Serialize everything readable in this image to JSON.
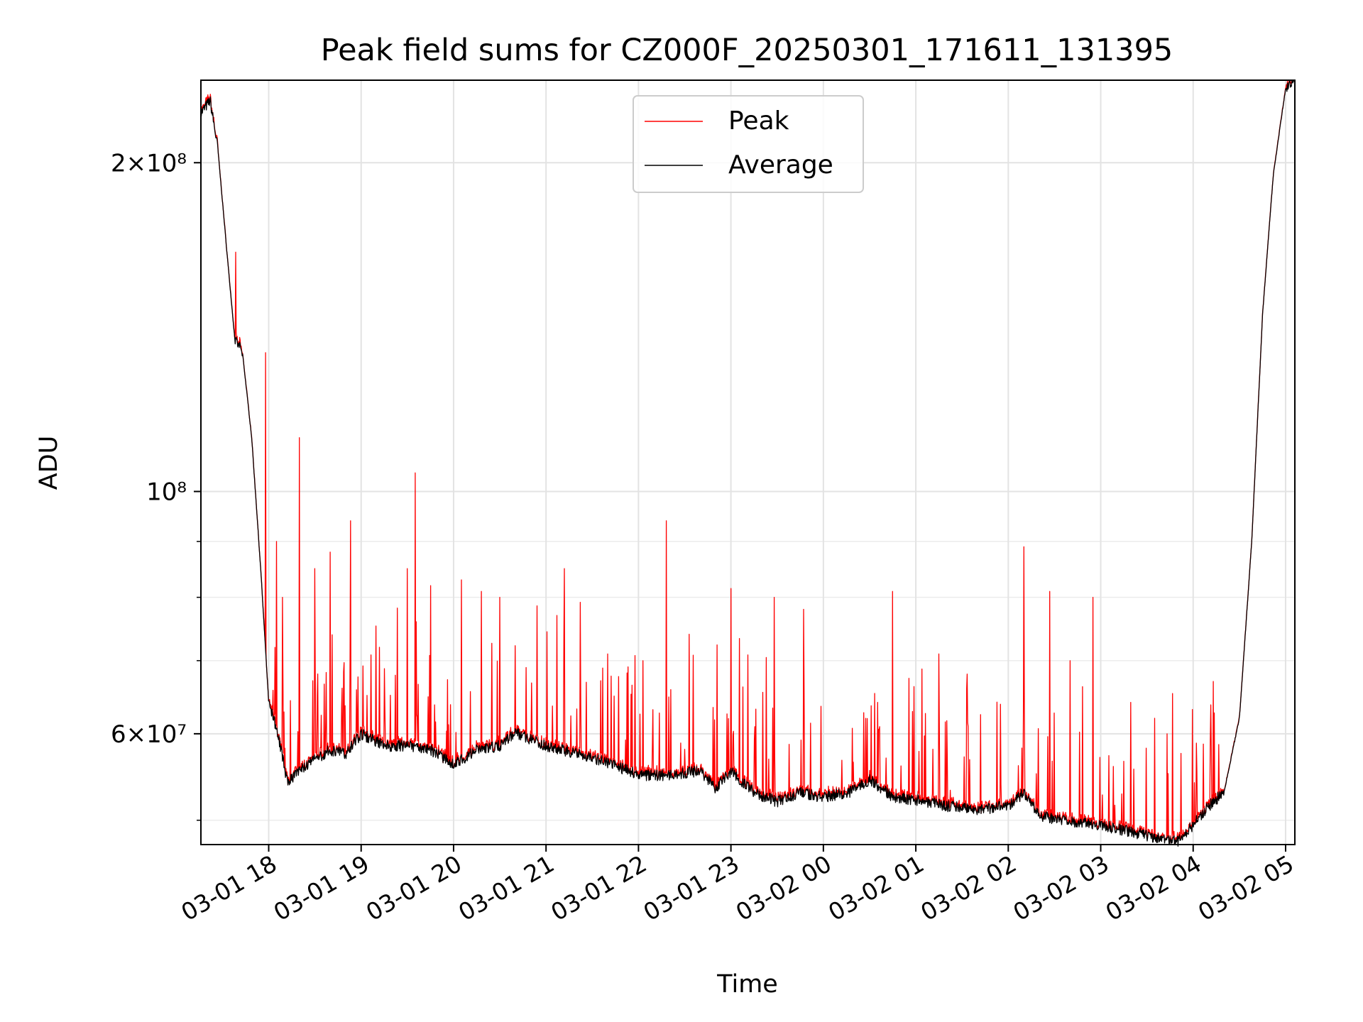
{
  "chart_data": {
    "type": "line",
    "title": "Peak field sums for CZ000F_20250301_171611_131395",
    "xlabel": "Time",
    "ylabel": "ADU",
    "x_axis": "date",
    "x_range": [
      "2025-03-01 17:16",
      "2025-03-02 05:06"
    ],
    "y_scale": "log",
    "ylim": [
      47500000.0,
      238000000.0
    ],
    "grid": true,
    "legend_position": "upper-center",
    "x_ticks": [
      "03-01 18",
      "03-01 19",
      "03-01 20",
      "03-01 21",
      "03-01 22",
      "03-01 23",
      "03-02 00",
      "03-02 01",
      "03-02 02",
      "03-02 03",
      "03-02 04",
      "03-02 05"
    ],
    "x_tick_times": [
      "2025-03-01 18:00",
      "2025-03-01 19:00",
      "2025-03-01 20:00",
      "2025-03-01 21:00",
      "2025-03-01 22:00",
      "2025-03-01 23:00",
      "2025-03-02 00:00",
      "2025-03-02 01:00",
      "2025-03-02 02:00",
      "2025-03-02 03:00",
      "2025-03-02 04:00",
      "2025-03-02 05:00"
    ],
    "y_ticks": [
      {
        "value": 200000000,
        "label": "2×10⁸"
      },
      {
        "value": 100000000,
        "label": "10⁸"
      },
      {
        "value": 60000000,
        "label": "6×10⁷"
      }
    ],
    "y_minor_ticks": [
      50000000,
      70000000,
      80000000,
      90000000
    ],
    "series": [
      {
        "name": "Average",
        "color": "#000000",
        "points": [
          [
            "2025-03-01 17:16",
            222000000.0
          ],
          [
            "2025-03-01 17:22",
            228000000.0
          ],
          [
            "2025-03-01 17:27",
            206000000.0
          ],
          [
            "2025-03-01 17:33",
            165000000.0
          ],
          [
            "2025-03-01 17:38",
            138000000.0
          ],
          [
            "2025-03-01 17:43",
            134000000.0
          ],
          [
            "2025-03-01 17:49",
            112000000.0
          ],
          [
            "2025-03-01 17:55",
            84000000.0
          ],
          [
            "2025-03-01 18:00",
            64000000.0
          ],
          [
            "2025-03-01 18:06",
            60000000.0
          ],
          [
            "2025-03-01 18:12",
            54200000.0
          ],
          [
            "2025-03-01 18:20",
            55500000.0
          ],
          [
            "2025-03-01 18:30",
            56800000.0
          ],
          [
            "2025-03-01 18:40",
            58000000.0
          ],
          [
            "2025-03-01 18:50",
            57500000.0
          ],
          [
            "2025-03-01 19:00",
            60000000.0
          ],
          [
            "2025-03-01 19:15",
            58500000.0
          ],
          [
            "2025-03-01 19:30",
            58500000.0
          ],
          [
            "2025-03-01 19:45",
            58000000.0
          ],
          [
            "2025-03-01 20:00",
            56200000.0
          ],
          [
            "2025-03-01 20:15",
            58000000.0
          ],
          [
            "2025-03-01 20:30",
            58500000.0
          ],
          [
            "2025-03-01 20:40",
            60200000.0
          ],
          [
            "2025-03-01 21:00",
            58500000.0
          ],
          [
            "2025-03-01 21:20",
            57500000.0
          ],
          [
            "2025-03-01 21:40",
            56500000.0
          ],
          [
            "2025-03-01 22:00",
            55000000.0
          ],
          [
            "2025-03-01 22:20",
            55000000.0
          ],
          [
            "2025-03-01 22:40",
            55500000.0
          ],
          [
            "2025-03-01 22:50",
            53500000.0
          ],
          [
            "2025-03-01 23:00",
            55500000.0
          ],
          [
            "2025-03-01 23:15",
            53000000.0
          ],
          [
            "2025-03-01 23:30",
            52000000.0
          ],
          [
            "2025-03-01 23:45",
            53000000.0
          ],
          [
            "2025-03-02 00:00",
            52500000.0
          ],
          [
            "2025-03-02 00:20",
            53200000.0
          ],
          [
            "2025-03-02 00:30",
            54500000.0
          ],
          [
            "2025-03-02 00:45",
            52500000.0
          ],
          [
            "2025-03-02 01:00",
            52200000.0
          ],
          [
            "2025-03-02 01:20",
            51500000.0
          ],
          [
            "2025-03-02 01:40",
            51200000.0
          ],
          [
            "2025-03-02 02:00",
            51500000.0
          ],
          [
            "2025-03-02 02:10",
            53000000.0
          ],
          [
            "2025-03-02 02:20",
            50500000.0
          ],
          [
            "2025-03-02 02:40",
            49800000.0
          ],
          [
            "2025-03-02 03:00",
            49500000.0
          ],
          [
            "2025-03-02 03:20",
            48800000.0
          ],
          [
            "2025-03-02 03:40",
            48000000.0
          ],
          [
            "2025-03-02 03:50",
            47800000.0
          ],
          [
            "2025-03-02 04:00",
            49500000.0
          ],
          [
            "2025-03-02 04:10",
            51500000.0
          ],
          [
            "2025-03-02 04:20",
            53000000.0
          ],
          [
            "2025-03-02 04:30",
            62000000.0
          ],
          [
            "2025-03-02 04:38",
            90000000.0
          ],
          [
            "2025-03-02 04:45",
            145000000.0
          ],
          [
            "2025-03-02 04:52",
            195000000.0
          ],
          [
            "2025-03-02 05:00",
            234000000.0
          ],
          [
            "2025-03-02 05:06",
            238000000.0
          ]
        ]
      },
      {
        "name": "Peak",
        "color": "#ff0000",
        "spikes": [
          [
            "2025-03-01 17:58",
            134000000.0
          ],
          [
            "2025-03-01 18:05",
            90000000.0
          ],
          [
            "2025-03-01 18:09",
            80000000.0
          ],
          [
            "2025-03-01 18:20",
            112000000.0
          ],
          [
            "2025-03-01 18:30",
            85000000.0
          ],
          [
            "2025-03-01 18:40",
            88000000.0
          ],
          [
            "2025-03-01 18:53",
            94000000.0
          ],
          [
            "2025-03-01 19:12",
            72000000.0
          ],
          [
            "2025-03-01 19:30",
            85000000.0
          ],
          [
            "2025-03-01 19:35",
            104000000.0
          ],
          [
            "2025-03-01 19:45",
            82000000.0
          ],
          [
            "2025-03-01 20:05",
            83000000.0
          ],
          [
            "2025-03-01 20:18",
            81000000.0
          ],
          [
            "2025-03-01 20:30",
            80000000.0
          ],
          [
            "2025-03-01 20:47",
            69000000.0
          ],
          [
            "2025-03-01 21:07",
            77000000.0
          ],
          [
            "2025-03-01 21:12",
            85000000.0
          ],
          [
            "2025-03-01 21:40",
            71000000.0
          ],
          [
            "2025-03-01 22:03",
            70000000.0
          ],
          [
            "2025-03-01 22:18",
            94000000.0
          ],
          [
            "2025-03-01 22:33",
            74000000.0
          ],
          [
            "2025-03-01 23:00",
            81500000.0
          ],
          [
            "2025-03-01 23:28",
            80000000.0
          ],
          [
            "2025-03-01 23:47",
            78000000.0
          ],
          [
            "2025-03-02 00:45",
            81000000.0
          ],
          [
            "2025-03-02 01:15",
            71000000.0
          ],
          [
            "2025-03-02 01:33",
            66000000.0
          ],
          [
            "2025-03-02 02:10",
            89000000.0
          ],
          [
            "2025-03-02 02:27",
            81000000.0
          ],
          [
            "2025-03-02 02:40",
            70000000.0
          ],
          [
            "2025-03-02 02:55",
            80000000.0
          ],
          [
            "2025-03-02 03:35",
            62000000.0
          ],
          [
            "2025-03-02 03:43",
            60000000.0
          ],
          [
            "2025-03-02 04:13",
            67000000.0
          ]
        ]
      }
    ]
  }
}
